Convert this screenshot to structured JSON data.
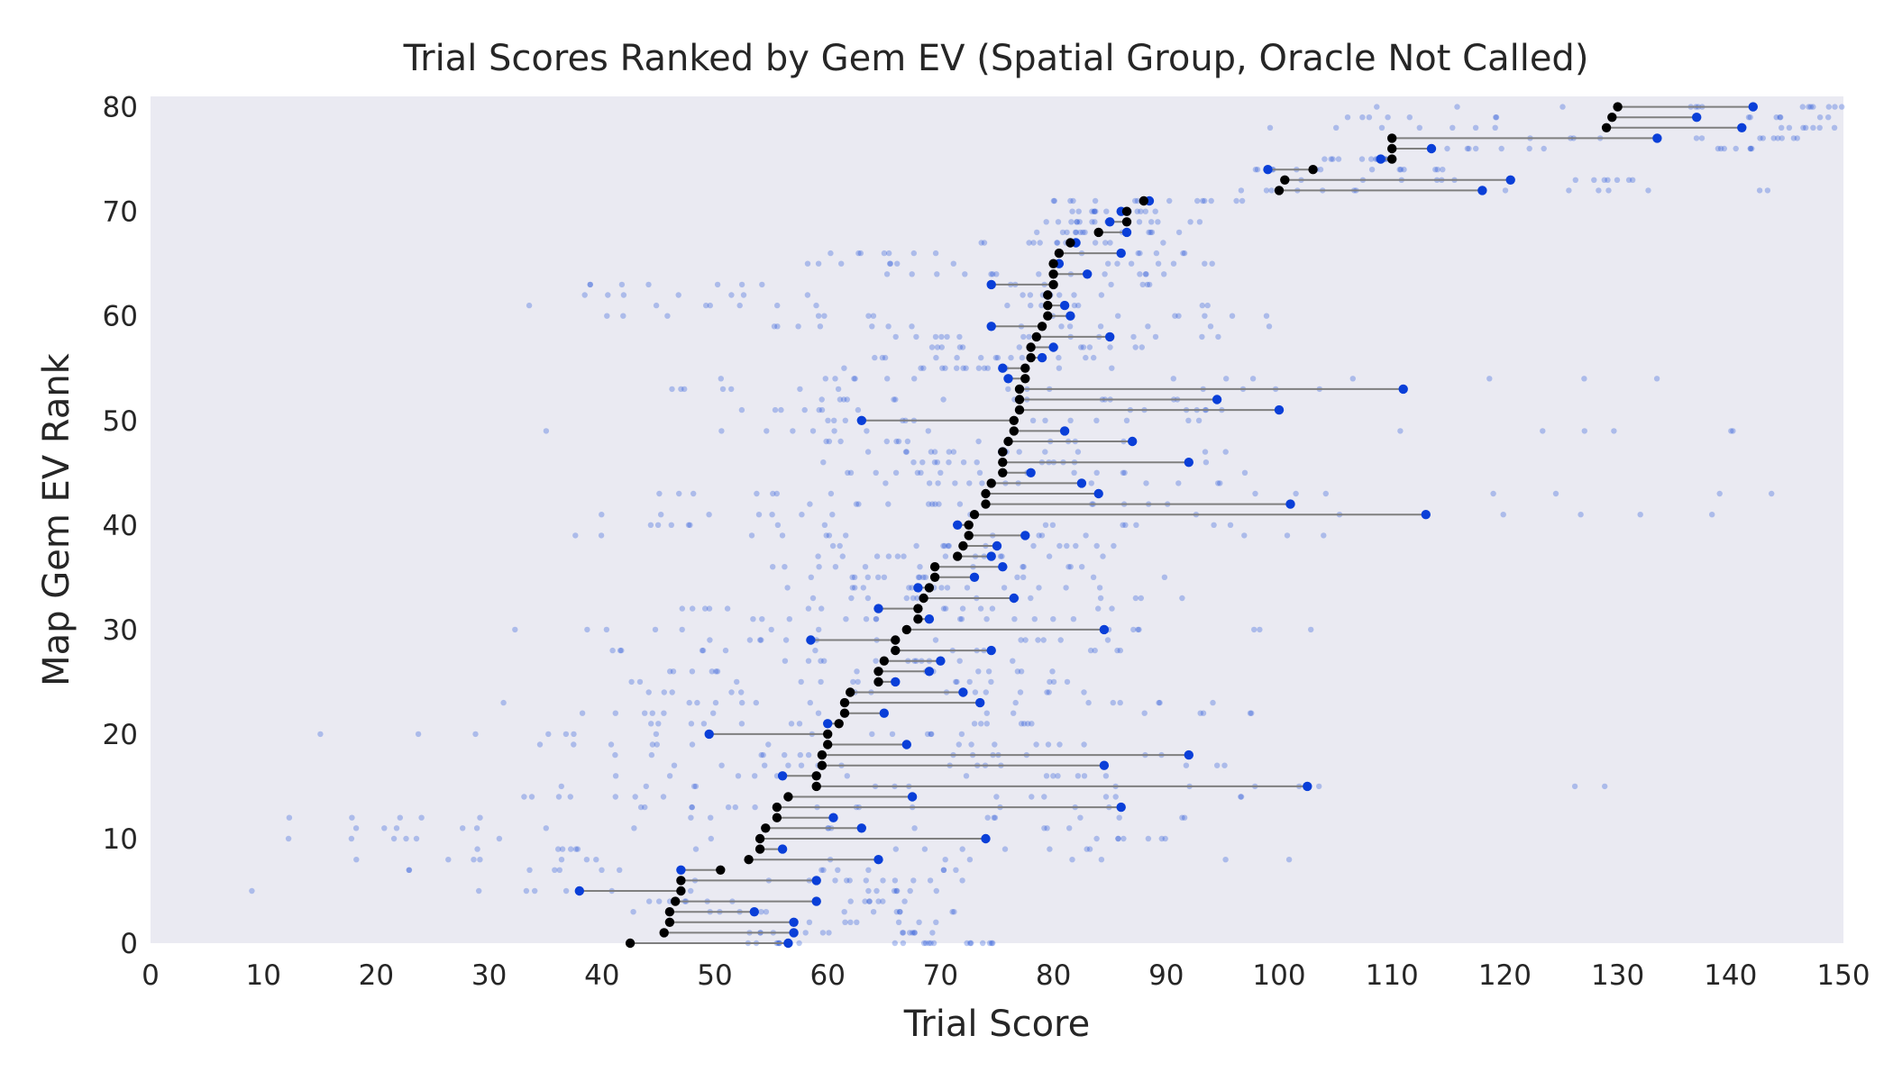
{
  "chart_data": {
    "type": "scatter",
    "title": "Trial Scores Ranked by Gem EV (Spatial Group, Oracle Not Called)",
    "xlabel": "Trial Score",
    "ylabel": "Map Gem EV Rank",
    "xlim": [
      0,
      150
    ],
    "ylim": [
      0,
      81
    ],
    "xticks": [
      "0",
      "10",
      "20",
      "30",
      "40",
      "50",
      "60",
      "70",
      "80",
      "90",
      "100",
      "110",
      "120",
      "130",
      "140",
      "150"
    ],
    "yticks": [
      "0",
      "10",
      "20",
      "30",
      "40",
      "50",
      "60",
      "70",
      "80"
    ],
    "grid": false,
    "colors": {
      "background": "#eaeaf2",
      "trial": "#1f4fd8",
      "highlight": "#0a3fd8",
      "ev": "#000000",
      "connector": "#7f7f7f"
    },
    "rank_ev_highlight": [
      [
        0,
        42.5,
        56.5
      ],
      [
        1,
        45.5,
        57
      ],
      [
        2,
        46,
        57
      ],
      [
        3,
        46,
        53.5
      ],
      [
        4,
        46.5,
        59
      ],
      [
        5,
        47,
        38
      ],
      [
        6,
        47,
        59
      ],
      [
        7,
        50.5,
        47
      ],
      [
        8,
        53,
        64.5
      ],
      [
        9,
        54,
        56
      ],
      [
        10,
        54,
        74
      ],
      [
        11,
        54.5,
        63
      ],
      [
        12,
        55.5,
        60.5
      ],
      [
        13,
        55.5,
        86
      ],
      [
        14,
        56.5,
        67.5
      ],
      [
        15,
        59,
        102.5
      ],
      [
        16,
        59,
        56
      ],
      [
        17,
        59.5,
        84.5
      ],
      [
        18,
        59.5,
        92
      ],
      [
        19,
        60,
        67
      ],
      [
        20,
        60,
        49.5
      ],
      [
        21,
        61,
        60
      ],
      [
        22,
        61.5,
        65
      ],
      [
        23,
        61.5,
        73.5
      ],
      [
        24,
        62,
        72
      ],
      [
        25,
        64.5,
        66
      ],
      [
        26,
        64.5,
        69
      ],
      [
        27,
        65,
        70
      ],
      [
        28,
        66,
        74.5
      ],
      [
        29,
        66,
        58.5
      ],
      [
        30,
        67,
        84.5
      ],
      [
        31,
        68,
        69
      ],
      [
        32,
        68,
        64.5
      ],
      [
        33,
        68.5,
        76.5
      ],
      [
        34,
        69,
        68
      ],
      [
        35,
        69.5,
        73
      ],
      [
        36,
        69.5,
        75.5
      ],
      [
        37,
        71.5,
        74.5
      ],
      [
        38,
        72,
        75
      ],
      [
        39,
        72.5,
        77.5
      ],
      [
        40,
        72.5,
        71.5
      ],
      [
        41,
        73,
        113
      ],
      [
        42,
        74,
        101
      ],
      [
        43,
        74,
        84
      ],
      [
        44,
        74.5,
        82.5
      ],
      [
        45,
        75.5,
        78
      ],
      [
        46,
        75.5,
        92
      ],
      [
        47,
        75.5,
        75.5
      ],
      [
        48,
        76,
        87
      ],
      [
        49,
        76.5,
        81
      ],
      [
        50,
        76.5,
        63
      ],
      [
        51,
        77,
        100
      ],
      [
        52,
        77,
        94.5
      ],
      [
        53,
        77,
        111
      ],
      [
        54,
        77.5,
        76
      ],
      [
        55,
        77.5,
        75.5
      ],
      [
        56,
        78,
        79
      ],
      [
        57,
        78,
        80
      ],
      [
        58,
        78.5,
        85
      ],
      [
        59,
        79,
        74.5
      ],
      [
        60,
        79.5,
        81.5
      ],
      [
        61,
        79.5,
        81
      ],
      [
        62,
        79.5,
        79.5
      ],
      [
        63,
        80,
        74.5
      ],
      [
        64,
        80,
        83
      ],
      [
        65,
        80,
        80.5
      ],
      [
        66,
        80.5,
        86
      ],
      [
        67,
        81.5,
        82
      ],
      [
        68,
        84,
        86.5
      ],
      [
        69,
        86.5,
        85
      ],
      [
        70,
        86.5,
        86
      ],
      [
        71,
        88,
        88.5
      ],
      [
        72,
        100,
        118
      ],
      [
        73,
        100.5,
        120.5
      ],
      [
        74,
        103,
        99
      ],
      [
        75,
        110,
        109
      ],
      [
        76,
        110,
        113.5
      ],
      [
        77,
        110,
        133.5
      ],
      [
        78,
        129,
        141
      ],
      [
        79,
        129.5,
        137
      ],
      [
        80,
        130,
        142
      ]
    ],
    "trials": [
      [
        0,
        52,
        57.5
      ],
      [
        0,
        65,
        70
      ],
      [
        0,
        72,
        75
      ],
      [
        1,
        50,
        61
      ],
      [
        1,
        66,
        70
      ],
      [
        2,
        55,
        70
      ],
      [
        3,
        41,
        57
      ],
      [
        3,
        60,
        76
      ],
      [
        4,
        44,
        52
      ],
      [
        4,
        62,
        68
      ],
      [
        5,
        8,
        55
      ],
      [
        5,
        62,
        70
      ],
      [
        6,
        48,
        65
      ],
      [
        6,
        58,
        72
      ],
      [
        7,
        21,
        43
      ],
      [
        7,
        55,
        74
      ],
      [
        8,
        18,
        44
      ],
      [
        8,
        60,
        101
      ],
      [
        9,
        7,
        52
      ],
      [
        9,
        62,
        93
      ],
      [
        10,
        7,
        51
      ],
      [
        10,
        80,
        92
      ],
      [
        11,
        18,
        46
      ],
      [
        11,
        56,
        89
      ],
      [
        12,
        8,
        53
      ],
      [
        12,
        69,
        92
      ],
      [
        13,
        38,
        57
      ],
      [
        13,
        58,
        93
      ],
      [
        14,
        21,
        56
      ],
      [
        14,
        64,
        99
      ],
      [
        15,
        35,
        68
      ],
      [
        15,
        84,
        131
      ],
      [
        16,
        32,
        62
      ],
      [
        16,
        71,
        86
      ],
      [
        17,
        46,
        62
      ],
      [
        17,
        67,
        98
      ],
      [
        18,
        36,
        62
      ],
      [
        18,
        69,
        94
      ],
      [
        19,
        33,
        57
      ],
      [
        19,
        71,
        86
      ],
      [
        20,
        10,
        53
      ],
      [
        20,
        58,
        72
      ],
      [
        21,
        41,
        58
      ],
      [
        21,
        63,
        84
      ],
      [
        22,
        37,
        63
      ],
      [
        22,
        74,
        98
      ],
      [
        23,
        27,
        59
      ],
      [
        23,
        76,
        96
      ],
      [
        24,
        43,
        64
      ],
      [
        24,
        67,
        83
      ],
      [
        25,
        42,
        66
      ],
      [
        25,
        70,
        87
      ],
      [
        26,
        44,
        66
      ],
      [
        26,
        68,
        81
      ],
      [
        27,
        56,
        73
      ],
      [
        27,
        64,
        80
      ],
      [
        28,
        40,
        61
      ],
      [
        28,
        70,
        87
      ],
      [
        29,
        48,
        65
      ],
      [
        29,
        69,
        87
      ],
      [
        30,
        27,
        64
      ],
      [
        30,
        72,
        104
      ],
      [
        31,
        46,
        65
      ],
      [
        31,
        70,
        84
      ],
      [
        32,
        47,
        62
      ],
      [
        32,
        66,
        86
      ],
      [
        33,
        55,
        73
      ],
      [
        33,
        71,
        93
      ],
      [
        34,
        56,
        70
      ],
      [
        34,
        70,
        85
      ],
      [
        35,
        57,
        71
      ],
      [
        35,
        68,
        94
      ],
      [
        36,
        54,
        70
      ],
      [
        36,
        72,
        84
      ],
      [
        37,
        56,
        73
      ],
      [
        37,
        70,
        87
      ],
      [
        38,
        59,
        73
      ],
      [
        38,
        72,
        87
      ],
      [
        39,
        30,
        65
      ],
      [
        39,
        74,
        104
      ],
      [
        40,
        40,
        62
      ],
      [
        40,
        68,
        112
      ],
      [
        41,
        37,
        62
      ],
      [
        41,
        72,
        139
      ],
      [
        42,
        56,
        70
      ],
      [
        42,
        69,
        91
      ],
      [
        43,
        41,
        61
      ],
      [
        43,
        72,
        147
      ],
      [
        44,
        63,
        76
      ],
      [
        44,
        70,
        97
      ],
      [
        45,
        61,
        73
      ],
      [
        45,
        72,
        99
      ],
      [
        46,
        58,
        73
      ],
      [
        46,
        70,
        98
      ],
      [
        47,
        61,
        72
      ],
      [
        47,
        74,
        96
      ],
      [
        48,
        56,
        70
      ],
      [
        48,
        73,
        87
      ],
      [
        49,
        14,
        65
      ],
      [
        49,
        68,
        149
      ],
      [
        50,
        60,
        74
      ],
      [
        50,
        76,
        96
      ],
      [
        51,
        52,
        67
      ],
      [
        51,
        84,
        100
      ],
      [
        52,
        57,
        72
      ],
      [
        52,
        76,
        92
      ],
      [
        53,
        46,
        63
      ],
      [
        53,
        74,
        107
      ],
      [
        54,
        50,
        71
      ],
      [
        54,
        88,
        142
      ],
      [
        55,
        61,
        75
      ],
      [
        55,
        72,
        90
      ],
      [
        56,
        64,
        77
      ],
      [
        56,
        74,
        87
      ],
      [
        57,
        69,
        79
      ],
      [
        57,
        78,
        89
      ],
      [
        58,
        64,
        78
      ],
      [
        58,
        77,
        95
      ],
      [
        59,
        51,
        73
      ],
      [
        59,
        76,
        103
      ],
      [
        60,
        36,
        66
      ],
      [
        60,
        74,
        100
      ],
      [
        61,
        33,
        61
      ],
      [
        61,
        75,
        99
      ],
      [
        62,
        38,
        60
      ],
      [
        62,
        76,
        87
      ],
      [
        63,
        37,
        63
      ],
      [
        63,
        76,
        90
      ],
      [
        64,
        62,
        75
      ],
      [
        64,
        78,
        91
      ],
      [
        65,
        57,
        72
      ],
      [
        65,
        80,
        95
      ],
      [
        66,
        58,
        70
      ],
      [
        66,
        80,
        92
      ],
      [
        67,
        73,
        82
      ],
      [
        67,
        80,
        90
      ],
      [
        68,
        77,
        85
      ],
      [
        68,
        82,
        92
      ],
      [
        69,
        79,
        86
      ],
      [
        69,
        82,
        94
      ],
      [
        70,
        80,
        87
      ],
      [
        70,
        83,
        91
      ],
      [
        71,
        78,
        88
      ],
      [
        71,
        86,
        99
      ],
      [
        72,
        95,
        110
      ],
      [
        72,
        120,
        145
      ],
      [
        73,
        100,
        117
      ],
      [
        73,
        125,
        132
      ],
      [
        74,
        97,
        107
      ],
      [
        74,
        108,
        115
      ],
      [
        75,
        104,
        113
      ],
      [
        75,
        108,
        110
      ],
      [
        76,
        114,
        126
      ],
      [
        76,
        138,
        142
      ],
      [
        77,
        115,
        140
      ],
      [
        77,
        142,
        147
      ],
      [
        78,
        98,
        122
      ],
      [
        78,
        144,
        150
      ],
      [
        79,
        100,
        120
      ],
      [
        79,
        140,
        150
      ],
      [
        80,
        106,
        140
      ],
      [
        80,
        146,
        150
      ]
    ]
  }
}
